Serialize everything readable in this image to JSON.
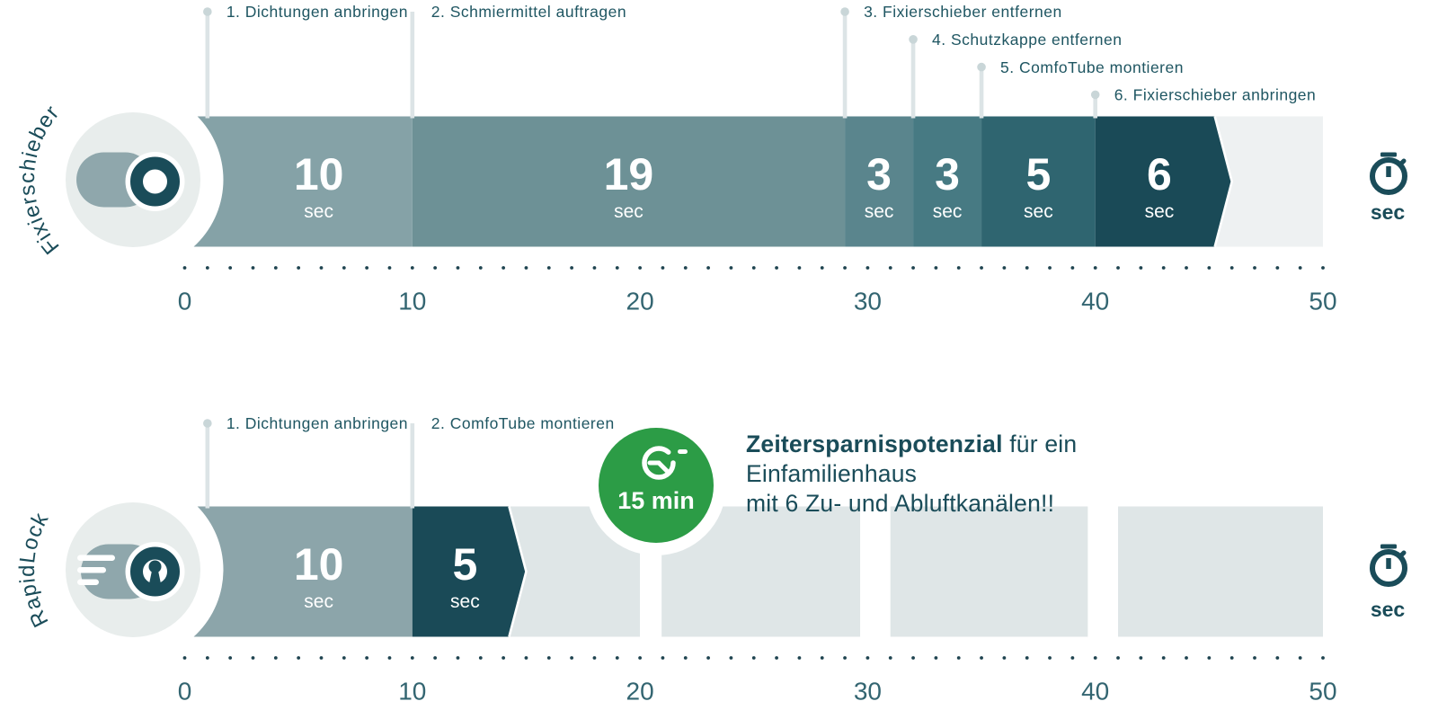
{
  "chart_data": {
    "type": "bar",
    "subtype": "horizontal-stacked-step-timeline-comparison",
    "unit": "sec",
    "axis": {
      "min": 0,
      "max": 50,
      "major_ticks": [
        0,
        10,
        20,
        30,
        40,
        50
      ],
      "minor_tick_step": 1,
      "grid": false
    },
    "series": [
      {
        "name": "Fixierschieber",
        "icon": "pipe-slider-toggle-icon",
        "total_sec": 46,
        "steps": [
          {
            "label": "1. Dichtungen anbringen",
            "sec": 10
          },
          {
            "label": "2. Schmiermittel auftragen",
            "sec": 19
          },
          {
            "label": "3. Fixierschieber entfernen",
            "sec": 3
          },
          {
            "label": "4. Schutzkappe entfernen",
            "sec": 3
          },
          {
            "label": "5. ComfoTube montieren",
            "sec": 5
          },
          {
            "label": "6. Fixierschieber anbringen",
            "sec": 6
          }
        ]
      },
      {
        "name": "RapidLock",
        "icon": "speed-lock-icon",
        "total_sec": 15,
        "steps": [
          {
            "label": "1. Dichtungen anbringen",
            "sec": 10
          },
          {
            "label": "2. ComfoTube montieren",
            "sec": 5
          }
        ]
      }
    ],
    "badge": {
      "label": "15 min",
      "icon": "timer-icon",
      "attached_to": "RapidLock"
    },
    "annotation": {
      "bold": "Zeitersparnispotenzial",
      "text_rest": " für ein Einfamilienhaus",
      "line2": "mit 6 Zu- und Abluftkanälen!!"
    },
    "unit_badge_label": "sec",
    "segment_unit_label": "sec"
  },
  "colors": {
    "accent_dark": "#1a4c59",
    "badge_green": "#2c9c46",
    "segments_fixierschieber": [
      "#85a2a7",
      "#6d9196",
      "#5a858d",
      "#477a83",
      "#2f6570",
      "#1a4a57"
    ],
    "segments_rapidlock": [
      "#8ca5aa",
      "#1a4a57"
    ],
    "track_fixierschieber": "#eef1f2",
    "track_rapidlock": "#dfe6e7",
    "icon_circle_bg": "#e8edec",
    "icon_pill": "#8fa7ac",
    "callout_line": "#dce4e6",
    "callout_dot": "#c9d6d8",
    "callout_text": "#1f5662",
    "axis_text": "#336571",
    "axis_dot": "#1f4450",
    "white": "#ffffff"
  }
}
